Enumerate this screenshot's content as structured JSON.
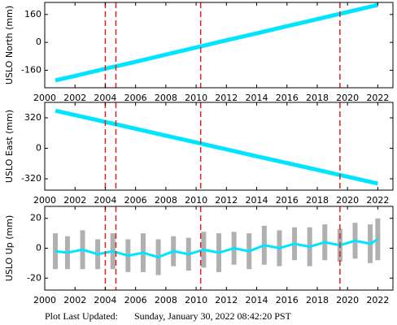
{
  "chart_data": [
    {
      "type": "line",
      "ylabel": "USLO North (mm)",
      "x": [
        2000.7,
        2002,
        2004,
        2006,
        2008,
        2010,
        2012,
        2014,
        2016,
        2018,
        2020,
        2022
      ],
      "series": [
        {
          "color": "#00e5ff",
          "values": [
            -218,
            -192,
            -151,
            -111,
            -70,
            -29,
            12,
            52,
            93,
            133,
            174,
            215
          ]
        }
      ],
      "xlim": [
        2000,
        2023
      ],
      "ylim": [
        -260,
        229
      ],
      "xticks": [
        2000,
        2002,
        2004,
        2006,
        2008,
        2010,
        2012,
        2014,
        2016,
        2018,
        2020,
        2022
      ],
      "yticks": [
        -160,
        0,
        160
      ],
      "vlines": [
        2004.0,
        2004.7,
        2010.3,
        2019.5
      ],
      "vline_color": "#e02020"
    },
    {
      "type": "line",
      "ylabel": "USLO East (mm)",
      "x": [
        2000.7,
        2002,
        2004,
        2006,
        2008,
        2010,
        2012,
        2014,
        2016,
        2018,
        2020,
        2022
      ],
      "series": [
        {
          "color": "#00e5ff",
          "values": [
            395,
            348,
            277,
            205,
            133,
            61,
            -11,
            -83,
            -155,
            -226,
            -298,
            -370
          ]
        }
      ],
      "xlim": [
        2000,
        2023
      ],
      "ylim": [
        -439,
        482
      ],
      "xticks": [
        2000,
        2002,
        2004,
        2006,
        2008,
        2010,
        2012,
        2014,
        2016,
        2018,
        2020,
        2022
      ],
      "yticks": [
        -320,
        0,
        320
      ],
      "vlines": [
        2004.0,
        2004.7,
        2010.3,
        2019.5
      ],
      "vline_color": "#e02020"
    },
    {
      "type": "line",
      "ylabel": "USLO Up (mm)",
      "x": [
        2000.7,
        2001.5,
        2002.5,
        2003.5,
        2004.5,
        2005.5,
        2006.5,
        2007.5,
        2008.5,
        2009.5,
        2010.5,
        2011.5,
        2012.5,
        2013.5,
        2014.5,
        2015.5,
        2016.5,
        2017.5,
        2018.5,
        2019.5,
        2020.5,
        2021.5,
        2022
      ],
      "series": [
        {
          "color": "#00e5ff",
          "error_color": "#b0b0b0",
          "values": [
            -2,
            -3,
            -1,
            -4,
            -2,
            -5,
            -3,
            -6,
            -2,
            -4,
            -1,
            -3,
            0,
            -2,
            2,
            0,
            3,
            1,
            4,
            2,
            5,
            3,
            6
          ],
          "errors": [
            12,
            11,
            13,
            10,
            12,
            11,
            13,
            12,
            10,
            11,
            12,
            13,
            11,
            12,
            13,
            12,
            11,
            13,
            12,
            11,
            12,
            13,
            14
          ]
        }
      ],
      "xlim": [
        2000,
        2023
      ],
      "ylim": [
        -28,
        28
      ],
      "xticks": [
        2000,
        2002,
        2004,
        2006,
        2008,
        2010,
        2012,
        2014,
        2016,
        2018,
        2020,
        2022
      ],
      "yticks": [
        -20,
        0,
        20
      ],
      "vlines": [
        2004.0,
        2004.7,
        2010.3,
        2019.5
      ],
      "vline_color": "#e02020"
    }
  ],
  "footer": {
    "label": "Plot Last Updated:",
    "date": "Sunday, January 30, 2022 08:42:20 PST"
  }
}
